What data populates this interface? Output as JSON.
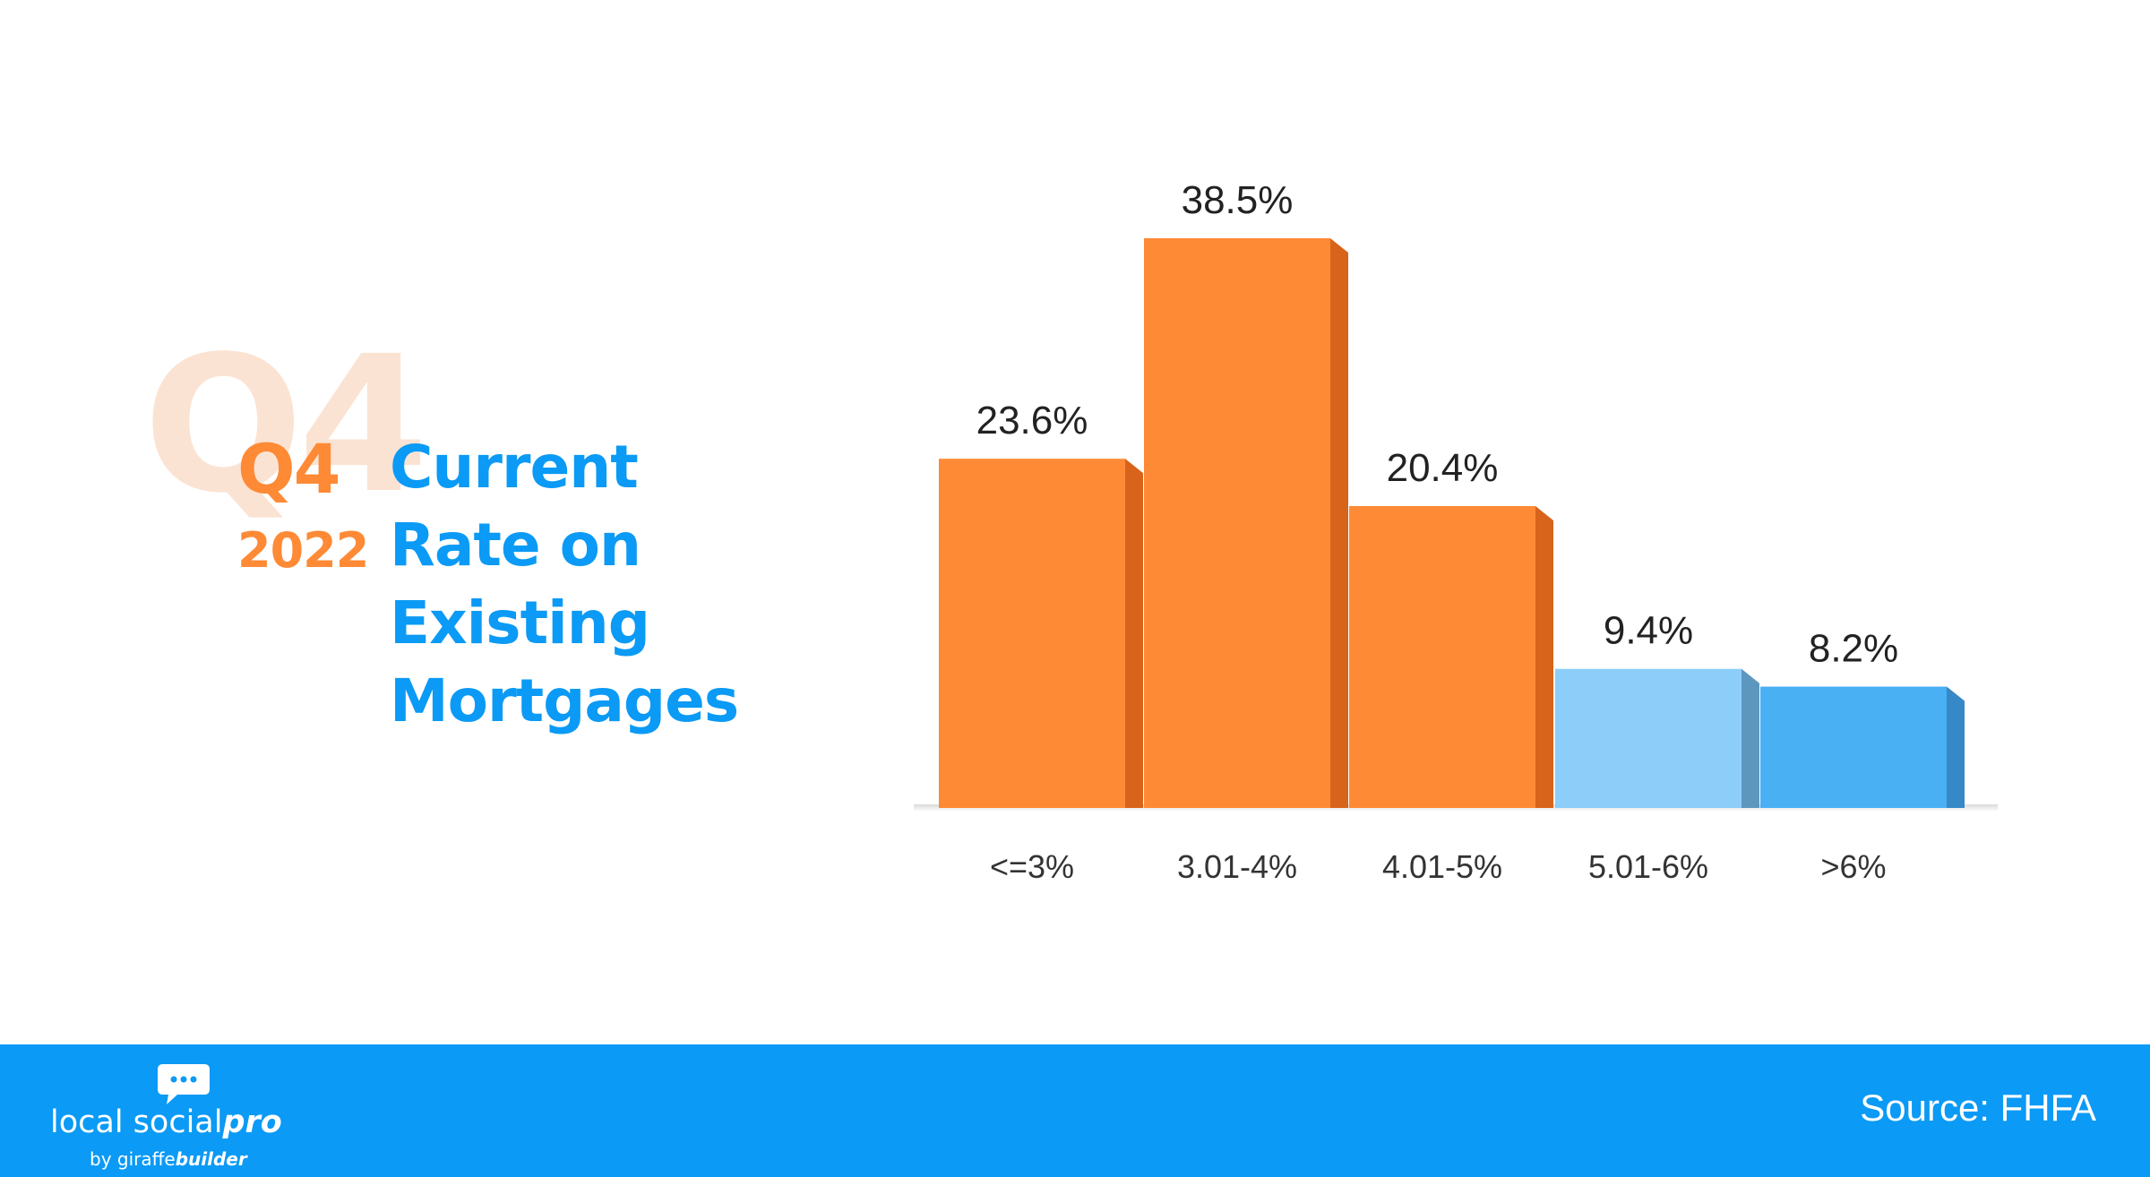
{
  "title": {
    "watermark": "Q4",
    "quarter": "Q4",
    "year": "2022",
    "lines": [
      "Current",
      "Rate on",
      "Existing",
      "Mortgages"
    ]
  },
  "chart_data": {
    "type": "bar",
    "title": "Current Rate on Existing Mortgages",
    "categories": [
      "<=3%",
      "3.01-4%",
      "4.01-5%",
      "5.01-6%",
      ">6%"
    ],
    "values": [
      23.6,
      38.5,
      20.4,
      9.4,
      8.2
    ],
    "value_labels": [
      "23.6%",
      "38.5%",
      "20.4%",
      "9.4%",
      "8.2%"
    ],
    "unit": "%",
    "ylim": [
      0,
      38.5
    ],
    "grid": false,
    "legend": "none",
    "colors": [
      "#fe8a36",
      "#fe8a36",
      "#fe8a36",
      "#8ccdfa",
      "#4ab0f4"
    ],
    "side_colors": [
      "#d8631a",
      "#d8631a",
      "#d8631a",
      "#5d97be",
      "#3689c6"
    ]
  },
  "footer": {
    "brand_main": "local social",
    "brand_pro": "pro",
    "brand_by": "by giraffe",
    "brand_builder": "builder",
    "source": "Source: FHFA",
    "background": "#0b9af5"
  }
}
